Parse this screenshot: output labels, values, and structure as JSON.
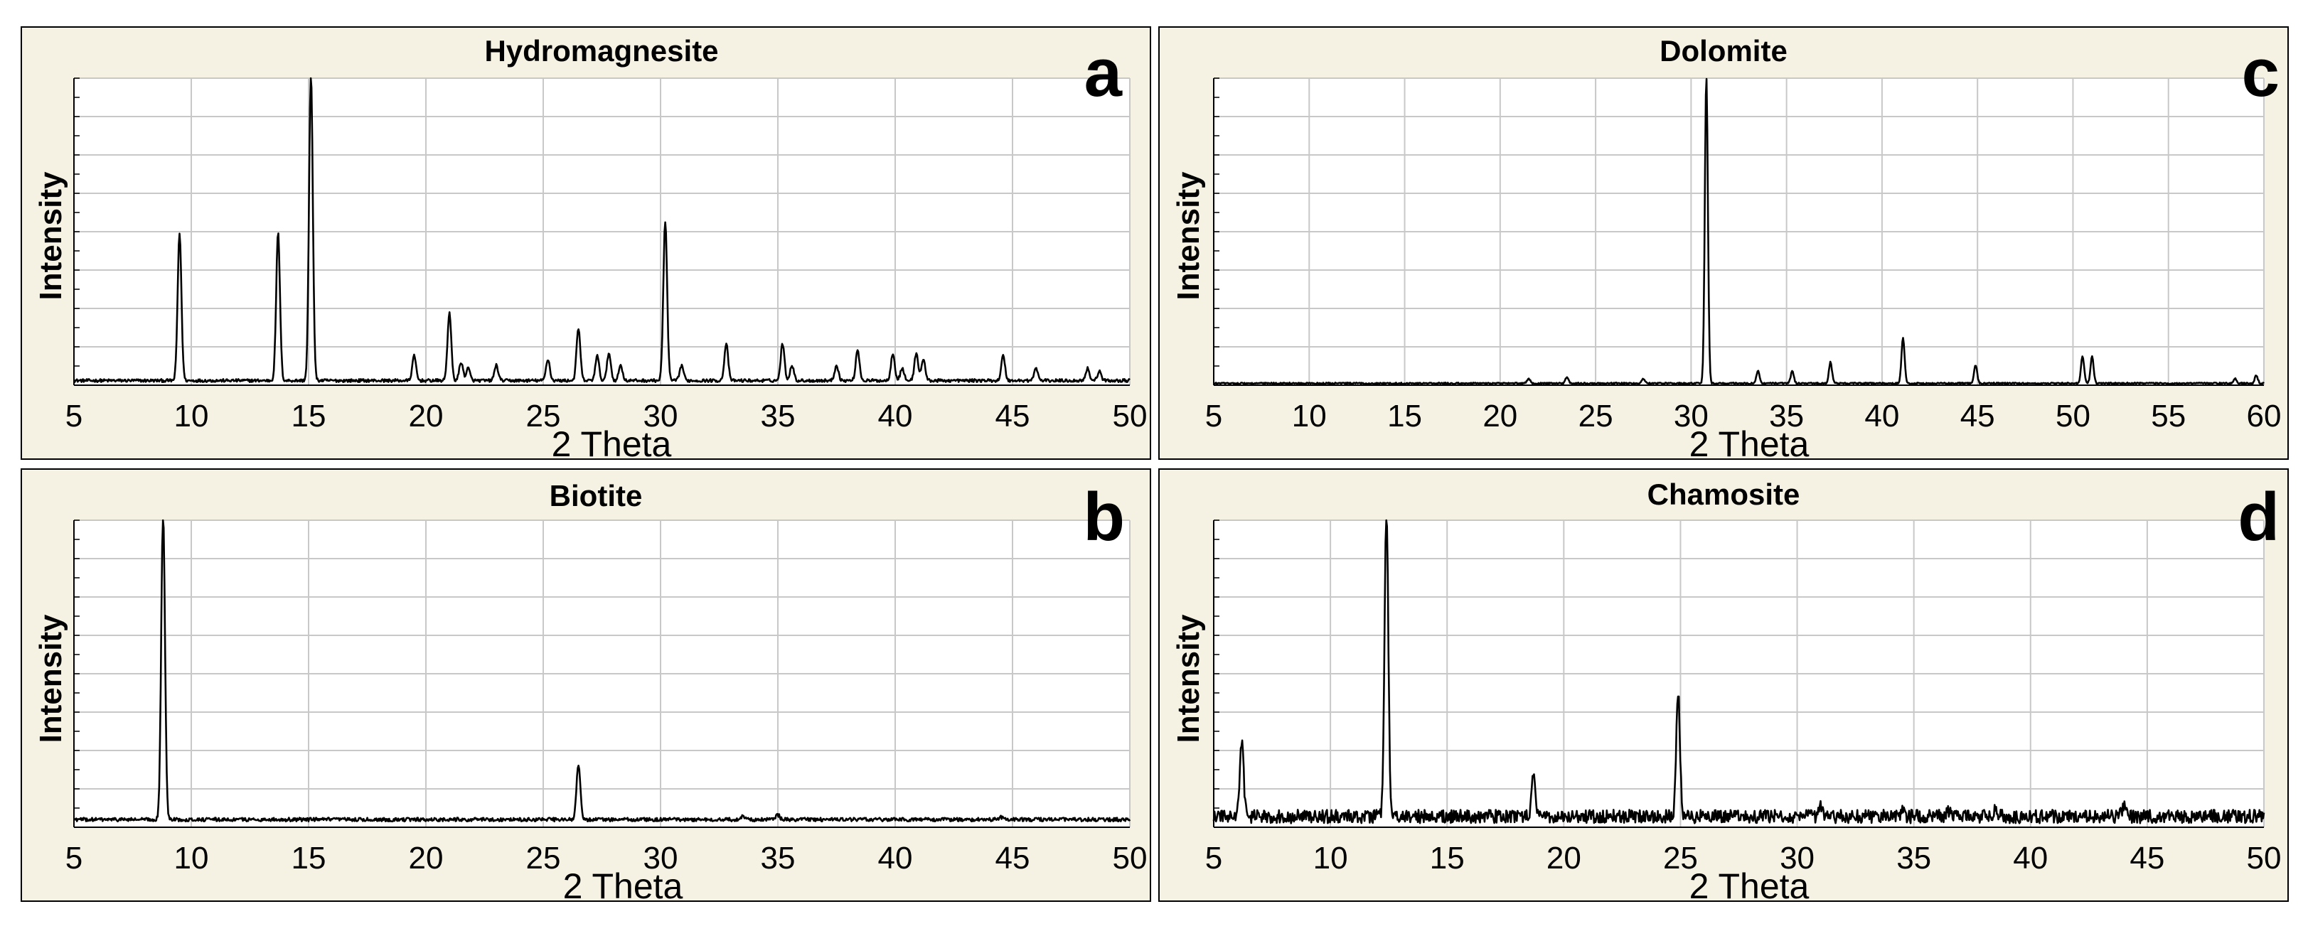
{
  "chart_data": [
    {
      "id": "a",
      "type": "line",
      "title": "Hydromagnesite",
      "panel_letter": "a",
      "xlabel": "2 Theta",
      "ylabel": "Intensity",
      "xlim": [
        5,
        50
      ],
      "xticks": [
        5,
        10,
        15,
        20,
        25,
        30,
        35,
        40,
        45,
        50
      ],
      "ylim": [
        0,
        100
      ],
      "grid": true,
      "baseline": 1.5,
      "noise": 0.5,
      "peaks": [
        [
          9.5,
          48
        ],
        [
          13.7,
          48
        ],
        [
          15.1,
          100
        ],
        [
          19.5,
          8
        ],
        [
          21.0,
          22
        ],
        [
          21.5,
          6
        ],
        [
          21.8,
          4
        ],
        [
          23.0,
          5
        ],
        [
          25.2,
          7
        ],
        [
          26.5,
          17
        ],
        [
          27.3,
          8
        ],
        [
          27.8,
          9
        ],
        [
          28.3,
          5
        ],
        [
          30.2,
          52
        ],
        [
          30.9,
          5
        ],
        [
          32.8,
          12
        ],
        [
          35.2,
          12
        ],
        [
          35.6,
          5
        ],
        [
          37.5,
          5
        ],
        [
          38.4,
          10
        ],
        [
          39.9,
          9
        ],
        [
          40.3,
          4
        ],
        [
          40.9,
          9
        ],
        [
          41.2,
          7
        ],
        [
          44.6,
          8
        ],
        [
          46.0,
          4
        ],
        [
          48.2,
          4
        ],
        [
          48.7,
          3
        ]
      ]
    },
    {
      "id": "b",
      "type": "line",
      "title": "Biotite",
      "panel_letter": "b",
      "xlabel": "2 Theta",
      "ylabel": "Intensity",
      "xlim": [
        5,
        50
      ],
      "xticks": [
        5,
        10,
        15,
        20,
        25,
        30,
        35,
        40,
        45,
        50
      ],
      "ylim": [
        0,
        100
      ],
      "grid": true,
      "baseline": 2.5,
      "noise": 0.6,
      "peaks": [
        [
          8.8,
          100
        ],
        [
          26.5,
          18
        ],
        [
          33.5,
          1
        ],
        [
          35.0,
          1.5
        ],
        [
          44.5,
          0.8
        ]
      ]
    },
    {
      "id": "c",
      "type": "line",
      "title": "Dolomite",
      "panel_letter": "c",
      "xlabel": "2 Theta",
      "ylabel": "Intensity",
      "xlim": [
        5,
        60
      ],
      "xticks": [
        5,
        10,
        15,
        20,
        25,
        30,
        35,
        40,
        45,
        50,
        55,
        60
      ],
      "ylim": [
        0,
        100
      ],
      "grid": true,
      "baseline": 0.6,
      "noise": 0.25,
      "peaks": [
        [
          21.5,
          1.5
        ],
        [
          23.5,
          2
        ],
        [
          27.5,
          1.5
        ],
        [
          30.8,
          100
        ],
        [
          33.5,
          4
        ],
        [
          35.3,
          4
        ],
        [
          37.3,
          7
        ],
        [
          41.1,
          15
        ],
        [
          44.9,
          6
        ],
        [
          50.5,
          9
        ],
        [
          51.0,
          9
        ],
        [
          58.5,
          1.5
        ],
        [
          59.6,
          2.5
        ]
      ]
    },
    {
      "id": "d",
      "type": "line",
      "title": "Chamosite",
      "panel_letter": "d",
      "xlabel": "2 Theta",
      "ylabel": "Intensity",
      "xlim": [
        5,
        50
      ],
      "xticks": [
        5,
        10,
        15,
        20,
        25,
        30,
        35,
        40,
        45,
        50
      ],
      "ylim": [
        0,
        100
      ],
      "grid": true,
      "baseline": 3.5,
      "noise": 2.2,
      "peaks": [
        [
          6.2,
          25
        ],
        [
          12.4,
          100
        ],
        [
          18.7,
          13
        ],
        [
          24.9,
          40
        ],
        [
          31.0,
          3
        ],
        [
          34.5,
          2
        ],
        [
          36.5,
          2
        ],
        [
          38.5,
          2
        ],
        [
          44.0,
          3
        ]
      ]
    }
  ]
}
